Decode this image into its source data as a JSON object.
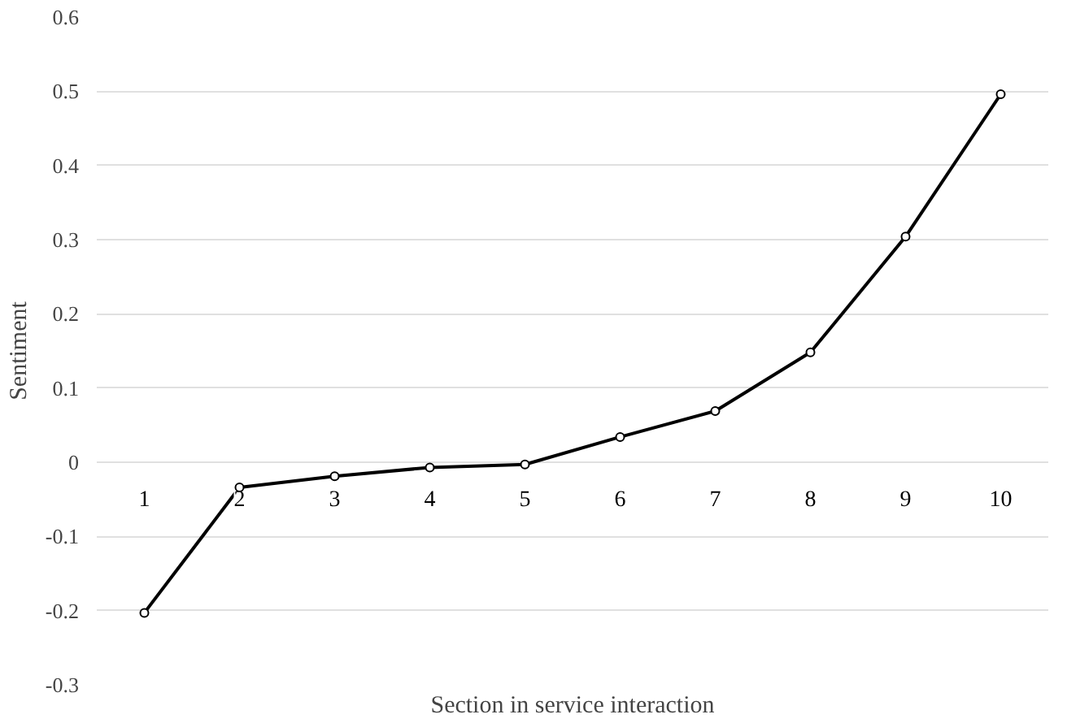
{
  "chart_data": {
    "type": "line",
    "xlabel": "Section in service interaction",
    "ylabel": "Sentiment",
    "categories": [
      "1",
      "2",
      "3",
      "4",
      "5",
      "6",
      "7",
      "8",
      "9",
      "10"
    ],
    "series": [
      {
        "color": "#000000",
        "values": [
          -0.203,
          -0.034,
          -0.019,
          -0.007,
          -0.003,
          0.034,
          0.069,
          0.148,
          0.304,
          0.496
        ]
      }
    ],
    "ylim": [
      -0.3,
      0.6
    ],
    "yticks": [
      0.6,
      0.5,
      0.4,
      0.3,
      0.2,
      0.1,
      {
        "value": 0,
        "label": "0"
      },
      -0.1,
      -0.2,
      -0.3
    ],
    "grid": "y",
    "marker": "circle",
    "line_style": "solid"
  }
}
